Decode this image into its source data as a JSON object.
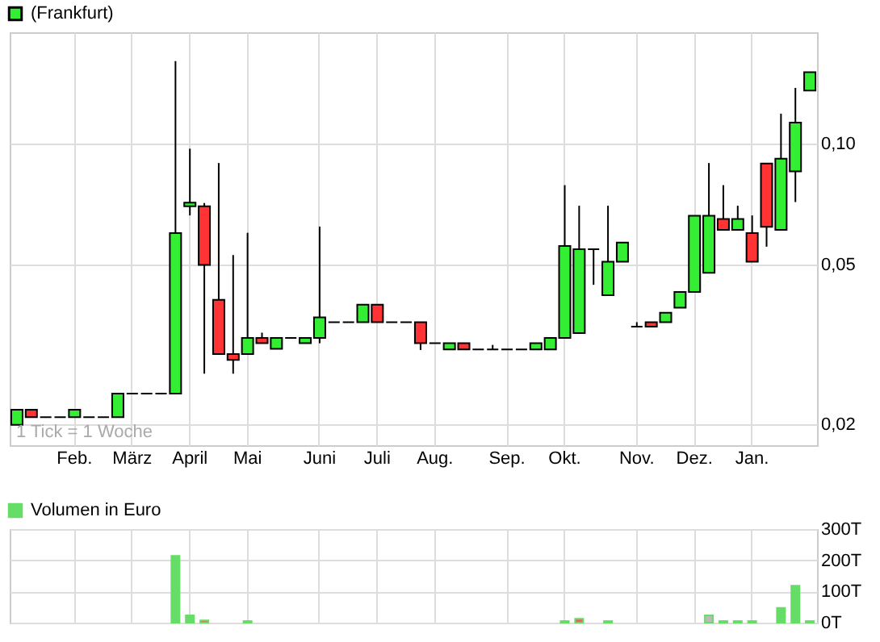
{
  "chart_data": [
    {
      "type": "candlestick",
      "categories": [
        null,
        null,
        null,
        null,
        "Feb.",
        null,
        null,
        null,
        "März",
        null,
        null,
        null,
        "April",
        null,
        null,
        null,
        "Mai",
        null,
        null,
        null,
        null,
        "Juni",
        null,
        null,
        null,
        "Juli",
        null,
        null,
        null,
        "Aug.",
        null,
        null,
        null,
        null,
        "Sep.",
        null,
        null,
        null,
        "Okt.",
        null,
        null,
        null,
        null,
        "Nov.",
        null,
        null,
        null,
        "Dez.",
        null,
        null,
        null,
        "Jan.",
        null,
        null,
        null,
        null
      ],
      "series": [
        {
          "name": "(Frankfurt)",
          "color": "#33ee33",
          "ohlc": [
            [
              0.0199,
              0.0217,
              0.0199,
              0.0217
            ],
            [
              0.0217,
              0.0217,
              0.0208,
              0.0208
            ],
            [
              0.0208,
              0.0208,
              0.0208,
              0.0208
            ],
            [
              0.0208,
              0.0208,
              0.0208,
              0.0208
            ],
            [
              0.0208,
              0.0217,
              0.0208,
              0.0217
            ],
            [
              0.0208,
              0.0208,
              0.0208,
              0.0208
            ],
            [
              0.0208,
              0.0208,
              0.0208,
              0.0208
            ],
            [
              0.0208,
              0.0238,
              0.0208,
              0.0238
            ],
            [
              0.0238,
              0.0238,
              0.0238,
              0.0238
            ],
            [
              0.0238,
              0.0238,
              0.0238,
              0.0238
            ],
            [
              0.0238,
              0.0238,
              0.0238,
              0.0238
            ],
            [
              0.0238,
              0.161,
              0.0238,
              0.0599
            ],
            [
              0.0699,
              0.0973,
              0.0663,
              0.0714
            ],
            [
              0.0699,
              0.0712,
              0.0267,
              0.0499
            ],
            [
              0.0408,
              0.0896,
              0.0299,
              0.0299
            ],
            [
              0.0299,
              0.0528,
              0.0267,
              0.0289
            ],
            [
              0.0299,
              0.06,
              0.0299,
              0.0328
            ],
            [
              0.0328,
              0.0338,
              0.0318,
              0.0318
            ],
            [
              0.0308,
              0.0328,
              0.0308,
              0.0328
            ],
            [
              0.0328,
              0.0328,
              0.0328,
              0.0328
            ],
            [
              0.0318,
              0.0328,
              0.0318,
              0.0328
            ],
            [
              0.0328,
              0.0622,
              0.0318,
              0.0369
            ],
            [
              0.0359,
              0.0359,
              0.0359,
              0.0359
            ],
            [
              0.0359,
              0.0359,
              0.0359,
              0.0359
            ],
            [
              0.0359,
              0.0397,
              0.0359,
              0.0397
            ],
            [
              0.0397,
              0.0397,
              0.0359,
              0.0359
            ],
            [
              0.0359,
              0.0359,
              0.0359,
              0.0359
            ],
            [
              0.0359,
              0.0359,
              0.0359,
              0.0359
            ],
            [
              0.0359,
              0.0359,
              0.0306,
              0.0318
            ],
            [
              0.0318,
              0.0318,
              0.0318,
              0.0318
            ],
            [
              0.0307,
              0.0318,
              0.0307,
              0.0318
            ],
            [
              0.0318,
              0.0318,
              0.0307,
              0.0307
            ],
            [
              0.0307,
              0.0307,
              0.0307,
              0.0307
            ],
            [
              0.0307,
              0.0315,
              0.0307,
              0.0307
            ],
            [
              0.0307,
              0.0307,
              0.0307,
              0.0307
            ],
            [
              0.0307,
              0.0307,
              0.0307,
              0.0307
            ],
            [
              0.0307,
              0.0318,
              0.0307,
              0.0318
            ],
            [
              0.0307,
              0.0328,
              0.0307,
              0.0328
            ],
            [
              0.0328,
              0.0789,
              0.0328,
              0.0556
            ],
            [
              0.0337,
              0.0701,
              0.0337,
              0.0546
            ],
            [
              0.0546,
              0.0546,
              0.0445,
              0.0546
            ],
            [
              0.0419,
              0.0701,
              0.0419,
              0.0508
            ],
            [
              0.0508,
              0.0567,
              0.0508,
              0.0567
            ],
            [
              0.035,
              0.0359,
              0.035,
              0.035
            ],
            [
              0.0359,
              0.0359,
              0.035,
              0.035
            ],
            [
              0.0359,
              0.0379,
              0.0359,
              0.0379
            ],
            [
              0.039,
              0.0427,
              0.039,
              0.0427
            ],
            [
              0.0427,
              0.0662,
              0.0427,
              0.0662
            ],
            [
              0.0477,
              0.0896,
              0.0477,
              0.0662
            ],
            [
              0.065,
              0.0789,
              0.061,
              0.061
            ],
            [
              0.061,
              0.0701,
              0.061,
              0.065
            ],
            [
              0.0599,
              0.0663,
              0.0508,
              0.0508
            ],
            [
              0.0894,
              0.0894,
              0.0554,
              0.0621
            ],
            [
              0.061,
              0.119,
              0.061,
              0.0919
            ],
            [
              0.0854,
              0.138,
              0.0716,
              0.113
            ],
            [
              0.136,
              0.151,
              0.136,
              0.151
            ]
          ],
          "colors": [
            "#33ee33",
            "#ff3333",
            "#000000",
            "#000000",
            "#33ee33",
            "#000000",
            "#000000",
            "#33ee33",
            "#000000",
            "#000000",
            "#000000",
            "#33ee33",
            "#33ee33",
            "#ff3333",
            "#ff3333",
            "#ff3333",
            "#33ee33",
            "#ff3333",
            "#33ee33",
            "#000000",
            "#33ee33",
            "#33ee33",
            "#000000",
            "#000000",
            "#33ee33",
            "#ff3333",
            "#000000",
            "#000000",
            "#ff3333",
            "#000000",
            "#33ee33",
            "#ff3333",
            "#000000",
            "#000000",
            "#000000",
            "#000000",
            "#33ee33",
            "#33ee33",
            "#33ee33",
            "#33ee33",
            "#000000",
            "#33ee33",
            "#33ee33",
            "#000000",
            "#ff3333",
            "#33ee33",
            "#33ee33",
            "#33ee33",
            "#33ee33",
            "#ff3333",
            "#33ee33",
            "#ff3333",
            "#ff3333",
            "#33ee33",
            "#33ee33",
            "#33ee33"
          ]
        }
      ],
      "ylim": [
        0.0177,
        0.19
      ],
      "yticks": [
        {
          "value": 0.02,
          "label": "0,02"
        },
        {
          "value": 0.05,
          "label": "0,05"
        },
        {
          "value": 0.1,
          "label": "0,10"
        }
      ],
      "log": true,
      "grid": true,
      "legend": "top left",
      "annotations": [
        "1 Tick = 1 Woche"
      ]
    },
    {
      "type": "bar",
      "categories": [
        null,
        null,
        null,
        null,
        null,
        null,
        null,
        null,
        null,
        null,
        null,
        null,
        null,
        null,
        null,
        null,
        null,
        null,
        null,
        null,
        null,
        null,
        null,
        null,
        null,
        null,
        null,
        null,
        null,
        null,
        null,
        null,
        null,
        null,
        null,
        null,
        null,
        null,
        null,
        null,
        null,
        null,
        null,
        null,
        null,
        null,
        null,
        null,
        null,
        null,
        null,
        null,
        null,
        null,
        null,
        null
      ],
      "series": [
        {
          "name": "Volumen in Euro",
          "color": "#66dd66",
          "values": [
            null,
            null,
            null,
            null,
            null,
            null,
            null,
            null,
            null,
            null,
            null,
            214,
            23,
            7,
            null,
            null,
            5,
            null,
            null,
            null,
            null,
            null,
            null,
            null,
            null,
            null,
            null,
            null,
            null,
            null,
            null,
            null,
            null,
            null,
            null,
            null,
            null,
            null,
            5,
            12,
            null,
            5,
            null,
            null,
            null,
            null,
            null,
            null,
            23,
            5,
            5,
            5,
            null,
            47,
            118,
            5
          ],
          "colors": [
            "#66dd66",
            "#66dd66",
            "#66dd66",
            "#66dd66",
            "#66dd66",
            "#66dd66",
            "#66dd66",
            "#66dd66",
            "#66dd66",
            "#66dd66",
            "#66dd66",
            "#66dd66",
            "#66dd66",
            "#e06666",
            "#66dd66",
            "#66dd66",
            "#66dd66",
            "#66dd66",
            "#66dd66",
            "#66dd66",
            "#66dd66",
            "#66dd66",
            "#66dd66",
            "#66dd66",
            "#66dd66",
            "#66dd66",
            "#66dd66",
            "#66dd66",
            "#66dd66",
            "#66dd66",
            "#66dd66",
            "#66dd66",
            "#66dd66",
            "#66dd66",
            "#66dd66",
            "#66dd66",
            "#66dd66",
            "#66dd66",
            "#66dd66",
            "#e06666",
            "#66dd66",
            "#e06666",
            "#66dd66",
            "#66dd66",
            "#66dd66",
            "#66dd66",
            "#66dd66",
            "#66dd66",
            "#bbbbbb",
            "#e06666",
            "#66dd66",
            "#e06666",
            "#66dd66",
            "#66dd66",
            "#66dd66",
            "#66dd66"
          ]
        }
      ],
      "ylim": [
        0,
        300
      ],
      "yticks": [
        {
          "value": 0,
          "label": "0T"
        },
        {
          "value": 100,
          "label": "100T"
        },
        {
          "value": 200,
          "label": "200T"
        },
        {
          "value": 300,
          "label": "300T"
        }
      ],
      "grid": true,
      "legend": "top left",
      "tick_labels": "y"
    }
  ]
}
